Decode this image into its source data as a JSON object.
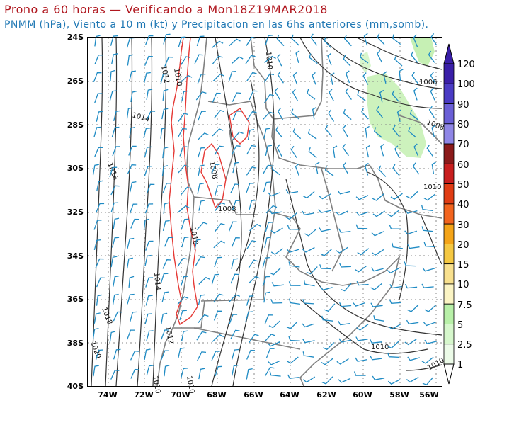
{
  "header": {
    "title": "Prono a 60 horas — Verificando a Mon18Z19MAR2018",
    "subtitle": "PNMM (hPa), Viento a 10 m (kt) y Precipitacion en las 6hs anteriores (mm,somb)."
  },
  "map": {
    "latitude_labels": [
      "24S",
      "26S",
      "28S",
      "30S",
      "32S",
      "34S",
      "36S",
      "38S",
      "40S"
    ],
    "longitude_labels": [
      "74W",
      "72W",
      "70W",
      "68W",
      "66W",
      "64W",
      "62W",
      "60W",
      "58W",
      "56W"
    ],
    "isobar_labels": [
      "1012",
      "1010",
      "1014",
      "1016",
      "1018",
      "1020",
      "1008",
      "1008",
      "1010",
      "1014",
      "1012",
      "1006",
      "1008",
      "1010",
      "1010",
      "1010",
      "1010",
      "1010",
      "1010"
    ],
    "colors": {
      "isobar": "#333333",
      "borders": "#808080",
      "wind_barb": "#1f8bc4",
      "red_contour": "#e53935",
      "light_green": "#c6f0b4",
      "grid": "#777777"
    }
  },
  "colorbar": {
    "labels": [
      "120",
      "100",
      "90",
      "80",
      "70",
      "60",
      "50",
      "40",
      "30",
      "20",
      "15",
      "10",
      "7.5",
      "5",
      "2.5",
      "1"
    ],
    "colors": [
      "#3a1fa8",
      "#4a3bc4",
      "#6a5fd6",
      "#8f86e6",
      "#8b1a1a",
      "#c81e1e",
      "#e03c14",
      "#f2641e",
      "#f4a418",
      "#f5c842",
      "#f8e08e",
      "#fbf4c4",
      "#b8f0a8",
      "#d6f7cc",
      "#ecfbe8"
    ]
  }
}
